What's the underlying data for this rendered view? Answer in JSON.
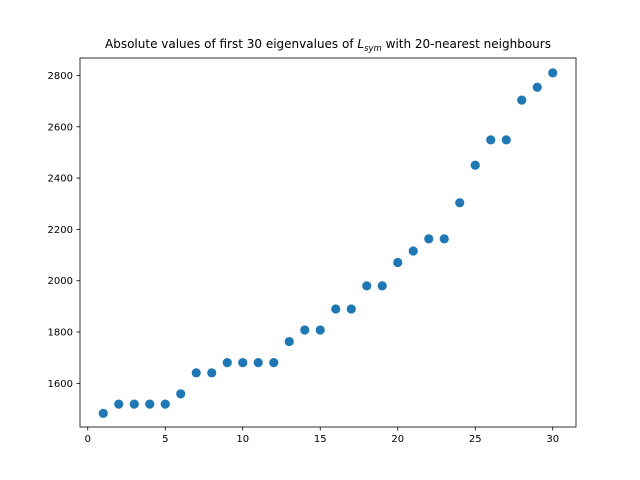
{
  "chart_data": {
    "type": "scatter",
    "title_prefix": "Absolute values of first 30 eigenvalues of ",
    "title_symbol": "L",
    "title_symbol_sub": "sym",
    "title_suffix": " with 20-nearest neighbours",
    "xlabel": "",
    "ylabel": "",
    "xlim": [
      -0.5,
      31.5
    ],
    "ylim": [
      1430,
      2868
    ],
    "xticks": [
      0,
      5,
      10,
      15,
      20,
      25,
      30
    ],
    "yticks": [
      1600,
      1800,
      2000,
      2200,
      2400,
      2600,
      2800
    ],
    "grid": false,
    "marker_color": "#1f77b4",
    "x": [
      1,
      2,
      3,
      4,
      5,
      6,
      7,
      8,
      9,
      10,
      11,
      12,
      13,
      14,
      15,
      16,
      17,
      18,
      19,
      20,
      21,
      22,
      23,
      24,
      25,
      26,
      27,
      28,
      29,
      30
    ],
    "y": [
      1483,
      1519,
      1519,
      1519,
      1519,
      1559,
      1641,
      1641,
      1681,
      1681,
      1681,
      1681,
      1763,
      1808,
      1808,
      1890,
      1890,
      1980,
      1980,
      2071,
      2116,
      2163,
      2163,
      2304,
      2450,
      2549,
      2549,
      2704,
      2754,
      2810
    ]
  }
}
